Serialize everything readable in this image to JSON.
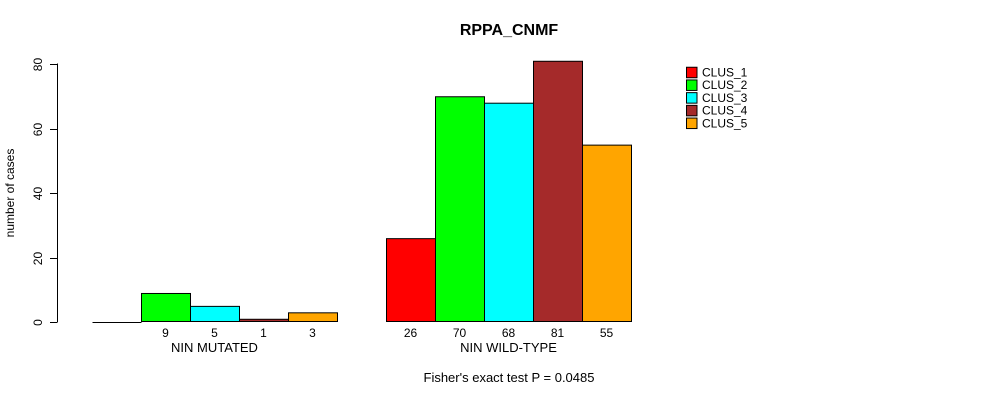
{
  "chart_data": {
    "type": "bar",
    "title": "RPPA_CNMF",
    "ylabel": "number of cases",
    "xlabel": "",
    "categories": [
      "NIN MUTATED",
      "NIN WILD-TYPE"
    ],
    "series": [
      {
        "name": "CLUS_1",
        "color": "#FF0000",
        "values": [
          0,
          26
        ]
      },
      {
        "name": "CLUS_2",
        "color": "#00FF00",
        "values": [
          9,
          70
        ]
      },
      {
        "name": "CLUS_3",
        "color": "#00FFFF",
        "values": [
          5,
          68
        ]
      },
      {
        "name": "CLUS_4",
        "color": "#A52A2A",
        "values": [
          1,
          81
        ]
      },
      {
        "name": "CLUS_5",
        "color": "#FFA500",
        "values": [
          3,
          55
        ]
      }
    ],
    "value_labels": [
      [
        "",
        "9",
        "5",
        "1",
        "3"
      ],
      [
        "26",
        "70",
        "68",
        "81",
        "55"
      ]
    ],
    "yticks": [
      0,
      20,
      40,
      60,
      80
    ],
    "ylim": [
      0,
      80
    ],
    "grid": false,
    "bar_border_color": "#000000",
    "legend_position": "right",
    "legend": [
      {
        "label": "CLUS_1",
        "color": "#FF0000"
      },
      {
        "label": "CLUS_2",
        "color": "#00FF00"
      },
      {
        "label": "CLUS_3",
        "color": "#00FFFF"
      },
      {
        "label": "CLUS_4",
        "color": "#A52A2A"
      },
      {
        "label": "CLUS_5",
        "color": "#FFA500"
      }
    ],
    "annotation": "Fisher's exact test P = 0.0485"
  }
}
